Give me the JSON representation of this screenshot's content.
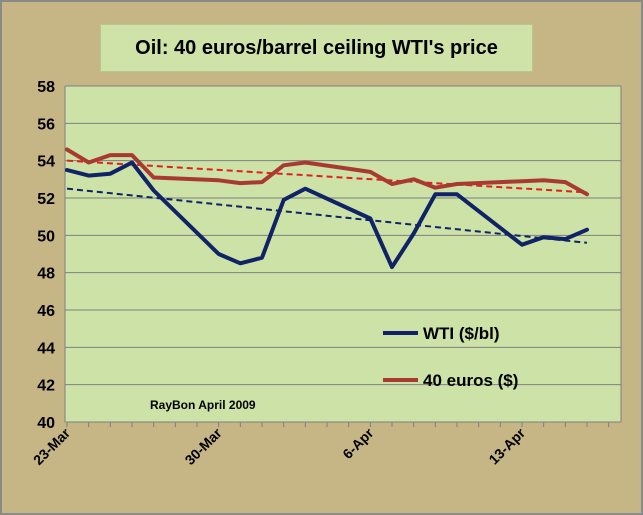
{
  "chart_data": {
    "type": "line",
    "title": "Oil: 40 euros/barrel ceiling WTI's price",
    "xlabel": "",
    "ylabel": "",
    "ylim": [
      40,
      58
    ],
    "yticks": [
      "40",
      "42",
      "44",
      "46",
      "48",
      "50",
      "52",
      "54",
      "56",
      "58"
    ],
    "xticks": [
      {
        "label": "23-Mar",
        "x": 0
      },
      {
        "label": "30-Mar",
        "x": 7
      },
      {
        "label": "6-Apr",
        "x": 14
      },
      {
        "label": "13-Apr",
        "x": 21
      }
    ],
    "xlim": [
      0,
      26
    ],
    "grid": true,
    "legend": "right",
    "series": [
      {
        "name": "WTI ($/bl)",
        "color": "#0f2366",
        "x": [
          0,
          1,
          2,
          3,
          4,
          7,
          8,
          9,
          10,
          11,
          14,
          15,
          16,
          17,
          18,
          21,
          22,
          23,
          24
        ],
        "values": [
          53.5,
          53.2,
          53.3,
          53.9,
          52.4,
          49.0,
          48.5,
          48.8,
          51.9,
          52.5,
          50.9,
          48.3,
          50.1,
          52.2,
          52.2,
          49.5,
          49.9,
          49.8,
          50.3
        ]
      },
      {
        "name": "40 euros ($)",
        "color": "#a83a32",
        "x": [
          0,
          1,
          2,
          3,
          4,
          7,
          8,
          9,
          10,
          11,
          14,
          15,
          16,
          17,
          18,
          21,
          22,
          23,
          24
        ],
        "values": [
          54.6,
          53.9,
          54.3,
          54.3,
          53.1,
          52.95,
          52.8,
          52.85,
          53.75,
          53.9,
          53.4,
          52.75,
          53.0,
          52.55,
          52.75,
          52.9,
          52.95,
          52.85,
          52.2
        ]
      }
    ],
    "trendlines": [
      {
        "series": "WTI ($/bl)",
        "color": "#0f2366",
        "from": [
          0,
          52.5
        ],
        "to": [
          24,
          49.6
        ]
      },
      {
        "series": "40 euros ($)",
        "color": "#e02020",
        "from": [
          0,
          54.0
        ],
        "to": [
          24,
          52.3
        ]
      }
    ],
    "annotation": "RayBon April  2009"
  }
}
